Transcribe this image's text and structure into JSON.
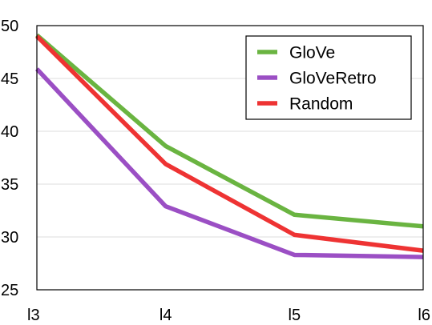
{
  "chart_data": {
    "type": "line",
    "title": "",
    "xlabel": "",
    "ylabel": "",
    "categories": [
      "l3",
      "l4",
      "l5",
      "l6"
    ],
    "ylim": [
      25,
      50
    ],
    "yticks": [
      25,
      30,
      35,
      40,
      45,
      50
    ],
    "grid": "horizontal",
    "legend_position": "top-right",
    "series": [
      {
        "name": "GloVe",
        "color": "#6ab441",
        "values": [
          49.1,
          38.6,
          32.1,
          31.0
        ]
      },
      {
        "name": "GloVeRetro",
        "color": "#9b4fc4",
        "values": [
          45.9,
          32.9,
          28.3,
          28.1
        ]
      },
      {
        "name": "Random",
        "color": "#ee3333",
        "values": [
          49.0,
          36.9,
          30.2,
          28.7
        ]
      }
    ]
  }
}
